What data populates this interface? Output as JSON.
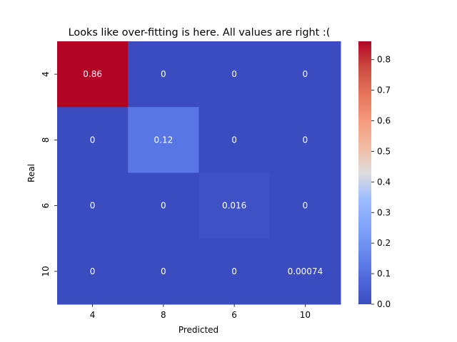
{
  "chart_data": {
    "type": "heatmap",
    "title": "Looks like over-fitting is here. All values are right :(",
    "xlabel": "Predicted",
    "ylabel": "Real",
    "x_categories": [
      "4",
      "8",
      "6",
      "10"
    ],
    "y_categories": [
      "4",
      "8",
      "6",
      "10"
    ],
    "values": [
      [
        0.86,
        0,
        0,
        0
      ],
      [
        0,
        0.12,
        0,
        0
      ],
      [
        0,
        0,
        0.016,
        0
      ],
      [
        0,
        0,
        0,
        0.00074
      ]
    ],
    "annotations": [
      [
        "0.86",
        "0",
        "0",
        "0"
      ],
      [
        "0",
        "0.12",
        "0",
        "0"
      ],
      [
        "0",
        "0",
        "0.016",
        "0"
      ],
      [
        "0",
        "0",
        "0",
        "0.00074"
      ]
    ],
    "colormap": "coolwarm",
    "colorbar": {
      "range": [
        0,
        0.86
      ],
      "ticks": [
        0.0,
        0.1,
        0.2,
        0.3,
        0.4,
        0.5,
        0.6,
        0.7,
        0.8
      ],
      "tick_labels": [
        "0.0",
        "0.1",
        "0.2",
        "0.3",
        "0.4",
        "0.5",
        "0.6",
        "0.7",
        "0.8"
      ]
    }
  }
}
